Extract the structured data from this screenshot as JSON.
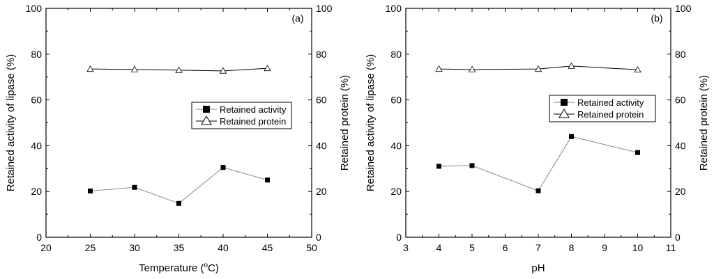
{
  "chart_data": [
    {
      "type": "line",
      "panel_label": "(a)",
      "xlabel": "Temperature (",
      "xlabel_sup": "o",
      "xlabel_tail": "C)",
      "ylabel_left": "Retained activity of lipase (%)",
      "ylabel_right": "Retained protein (%)",
      "xlim": [
        20,
        50
      ],
      "ylim": [
        0,
        100
      ],
      "x_ticks": [
        "20",
        "25",
        "30",
        "35",
        "40",
        "45",
        "50"
      ],
      "y_ticks": [
        "0",
        "20",
        "40",
        "60",
        "80",
        "100"
      ],
      "legend_position": "center-right",
      "series": [
        {
          "name": "Retained activity",
          "marker": "filled-square",
          "color": "#000000",
          "line_color": "#888888",
          "x": [
            25,
            30,
            35,
            40,
            45
          ],
          "values": [
            20.2,
            21.8,
            14.8,
            30.5,
            25.0
          ]
        },
        {
          "name": "Retained protein",
          "marker": "open-triangle",
          "color": "#000000",
          "line_color": "#000000",
          "x": [
            25,
            30,
            35,
            40,
            45
          ],
          "values": [
            73.5,
            73.3,
            73.0,
            72.7,
            73.8
          ]
        }
      ]
    },
    {
      "type": "line",
      "panel_label": "(b)",
      "xlabel": "pH",
      "xlabel_sup": "",
      "xlabel_tail": "",
      "ylabel_left": "Retained activity of lipase (%)",
      "ylabel_right": "Retained protein (%)",
      "xlim": [
        3,
        11
      ],
      "ylim": [
        0,
        100
      ],
      "x_ticks": [
        "3",
        "4",
        "5",
        "6",
        "7",
        "8",
        "9",
        "10",
        "11"
      ],
      "y_ticks": [
        "0",
        "20",
        "40",
        "60",
        "80",
        "100"
      ],
      "legend_position": "center-right",
      "series": [
        {
          "name": "Retained activity",
          "marker": "filled-square",
          "color": "#000000",
          "line_color": "#888888",
          "x": [
            4,
            5,
            7,
            8,
            10
          ],
          "values": [
            31.0,
            31.3,
            20.3,
            44.0,
            37.0
          ]
        },
        {
          "name": "Retained protein",
          "marker": "open-triangle",
          "color": "#000000",
          "line_color": "#000000",
          "x": [
            4,
            5,
            7,
            8,
            10
          ],
          "values": [
            73.5,
            73.3,
            73.5,
            74.8,
            73.2
          ]
        }
      ]
    }
  ]
}
